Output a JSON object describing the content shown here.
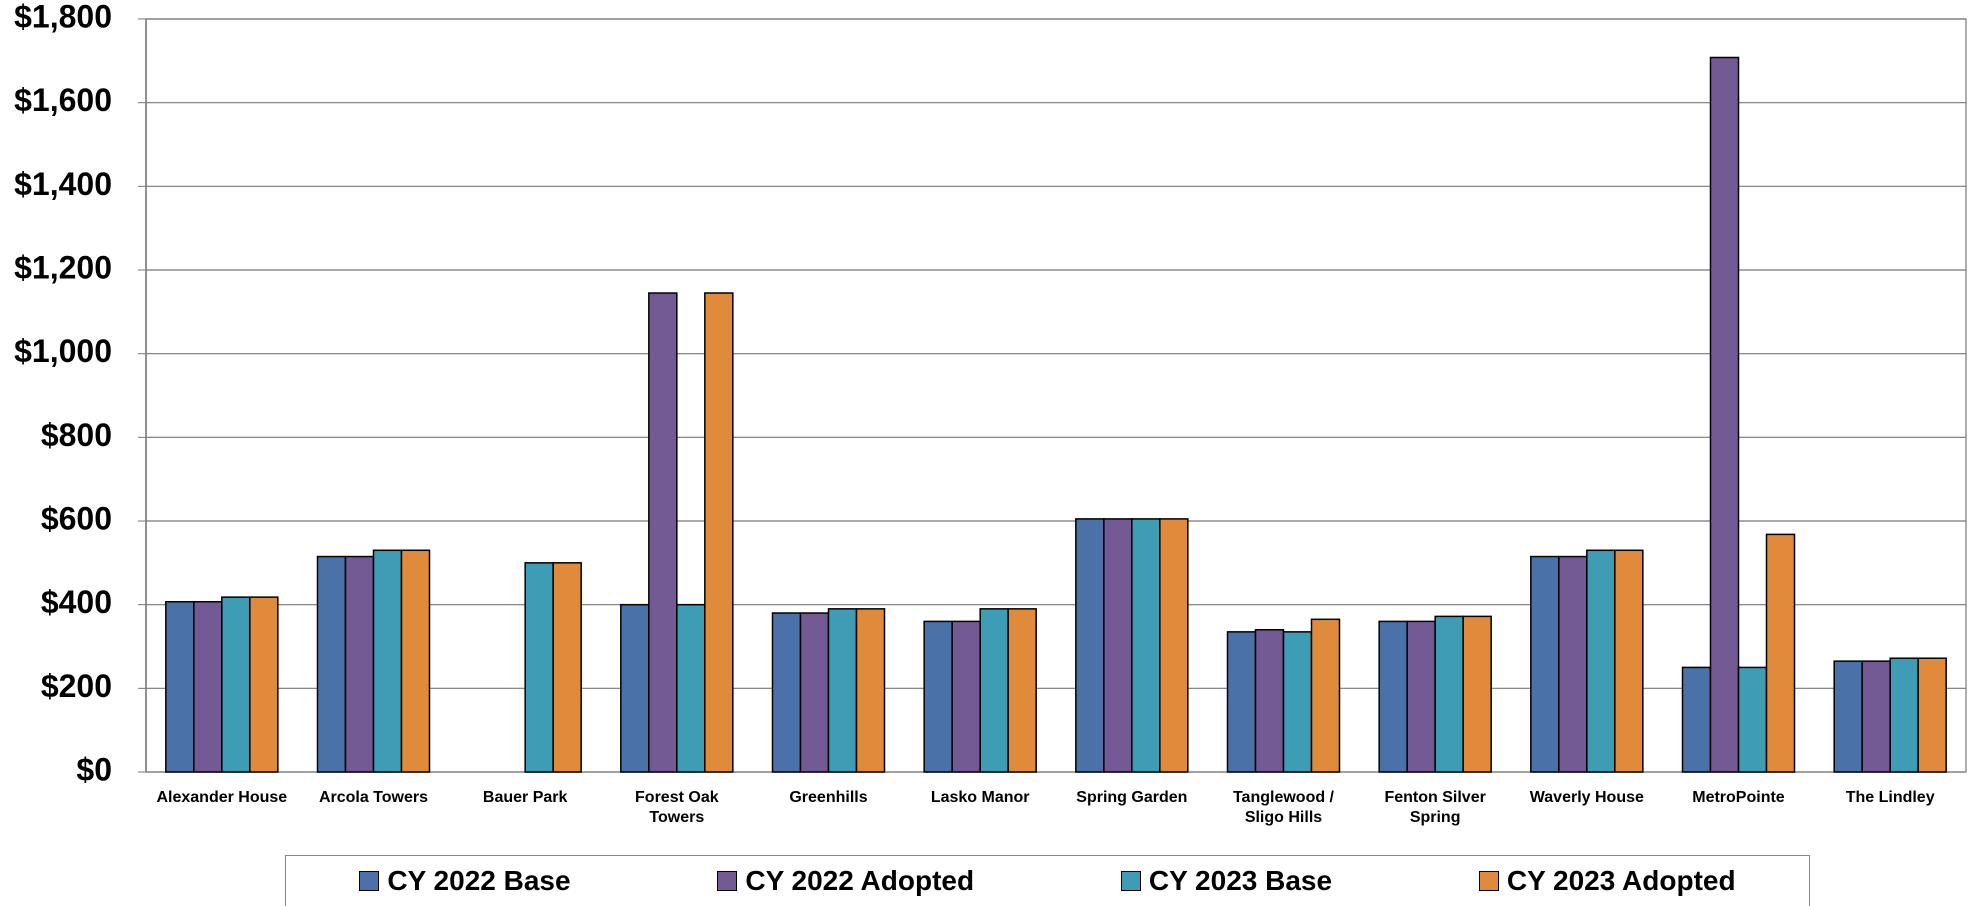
{
  "chart_data": {
    "type": "bar",
    "categories": [
      "Alexander House",
      "Arcola Towers",
      "Bauer Park",
      "Forest Oak Towers",
      "Greenhills",
      "Lasko Manor",
      "Spring Garden",
      "Tanglewood / Sligo Hills",
      "Fenton Silver Spring",
      "Waverly House",
      "MetroPointe",
      "The Lindley"
    ],
    "series": [
      {
        "name": "CY 2022 Base",
        "color": "#4a72a8",
        "values": [
          407,
          515,
          null,
          400,
          380,
          360,
          605,
          335,
          360,
          515,
          250,
          265
        ]
      },
      {
        "name": "CY 2022 Adopted",
        "color": "#745a94",
        "values": [
          407,
          515,
          null,
          1145,
          380,
          360,
          605,
          340,
          360,
          515,
          1708,
          265
        ]
      },
      {
        "name": "CY 2023 Base",
        "color": "#3f9cb5",
        "values": [
          418,
          530,
          500,
          400,
          390,
          390,
          605,
          335,
          372,
          530,
          250,
          272
        ]
      },
      {
        "name": "CY 2023 Adopted",
        "color": "#e08a3c",
        "values": [
          418,
          530,
          500,
          1145,
          390,
          390,
          605,
          365,
          372,
          530,
          568,
          272
        ]
      }
    ],
    "ylim": [
      0,
      1800
    ],
    "yticks": [
      {
        "value": 0,
        "label": "$0"
      },
      {
        "value": 200,
        "label": "$200"
      },
      {
        "value": 400,
        "label": "$400"
      },
      {
        "value": 600,
        "label": "$600"
      },
      {
        "value": 800,
        "label": "$800"
      },
      {
        "value": 1000,
        "label": "$1,000"
      },
      {
        "value": 1200,
        "label": "$1,200"
      },
      {
        "value": 1400,
        "label": "$1,400"
      },
      {
        "value": 1600,
        "label": "$1,600"
      },
      {
        "value": 1800,
        "label": "$1,800"
      }
    ],
    "grid": true,
    "legend": "bottom"
  }
}
